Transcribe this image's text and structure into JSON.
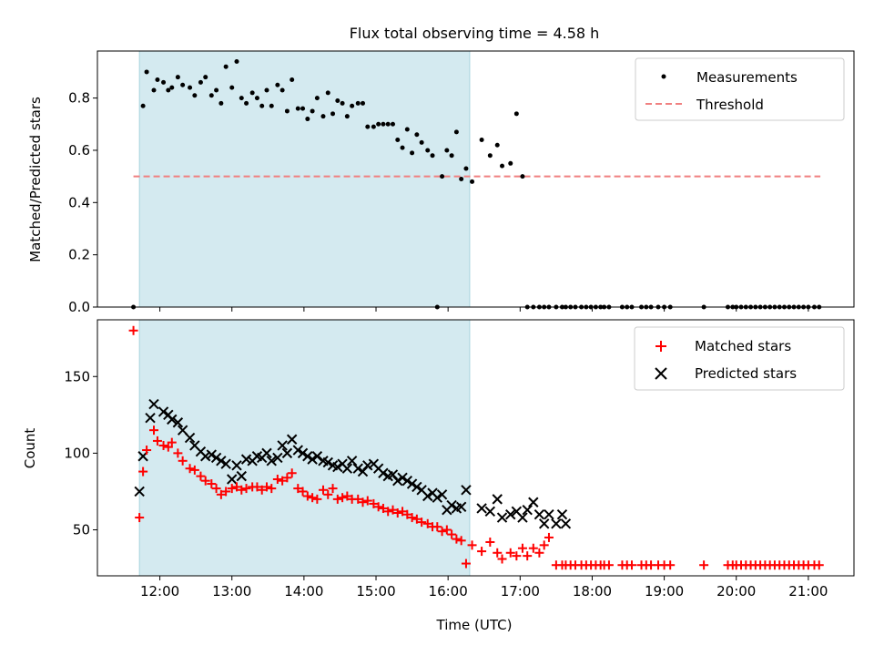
{
  "chart_data": [
    {
      "type": "scatter",
      "title": "Flux total observing time = 4.58 h",
      "xlabel": "",
      "ylabel": "Matched/Predicted stars",
      "xlim": [
        "11:08",
        "21:38"
      ],
      "ylim": [
        0,
        0.98
      ],
      "yticks": [
        0.0,
        0.2,
        0.4,
        0.6,
        0.8
      ],
      "ytick_labels": [
        "0.0",
        "0.2",
        "0.4",
        "0.6",
        "0.8"
      ],
      "xticks": [
        "12:00",
        "13:00",
        "14:00",
        "15:00",
        "16:00",
        "17:00",
        "18:00",
        "19:00",
        "20:00",
        "21:00"
      ],
      "observing_window": {
        "start": "11:43",
        "end": "16:18",
        "color": "#d4eaf0"
      },
      "threshold": {
        "value": 0.5,
        "start": "11:38",
        "end": "21:10",
        "color": "#f08080"
      },
      "legend_position": "top-right",
      "legend": [
        {
          "label": "Measurements",
          "marker": "dot",
          "color": "#000000"
        },
        {
          "label": "Threshold",
          "marker": "dashed-line",
          "color": "#f08080"
        }
      ],
      "series": [
        {
          "name": "Measurements",
          "color": "#000000",
          "x": [
            "11:38",
            "11:46",
            "11:49",
            "11:55",
            "11:58",
            "12:03",
            "12:07",
            "12:10",
            "12:15",
            "12:19",
            "12:25",
            "12:29",
            "12:34",
            "12:38",
            "12:43",
            "12:47",
            "12:51",
            "12:55",
            "13:00",
            "13:04",
            "13:08",
            "13:12",
            "13:17",
            "13:21",
            "13:25",
            "13:29",
            "13:33",
            "13:38",
            "13:42",
            "13:46",
            "13:50",
            "13:55",
            "13:59",
            "14:03",
            "14:07",
            "14:11",
            "14:16",
            "14:20",
            "14:24",
            "14:28",
            "14:32",
            "14:36",
            "14:40",
            "14:45",
            "14:49",
            "14:53",
            "14:58",
            "15:02",
            "15:06",
            "15:10",
            "15:14",
            "15:18",
            "15:22",
            "15:26",
            "15:30",
            "15:34",
            "15:38",
            "15:43",
            "15:47",
            "15:51",
            "15:55",
            "15:59",
            "16:03",
            "16:07",
            "16:11",
            "16:15",
            "16:20",
            "16:28",
            "16:35",
            "16:41",
            "16:45",
            "16:52",
            "16:57",
            "17:02",
            "17:06",
            "17:11",
            "17:16",
            "17:20",
            "17:24",
            "17:30",
            "17:35",
            "17:38",
            "17:42",
            "17:46",
            "17:51",
            "17:55",
            "17:59",
            "18:03",
            "18:07",
            "18:10",
            "18:14",
            "18:25",
            "18:29",
            "18:33",
            "18:41",
            "18:45",
            "18:49",
            "18:55",
            "19:00",
            "19:05",
            "19:33",
            "19:53",
            "19:57",
            "20:00",
            "20:04",
            "20:08",
            "20:12",
            "20:16",
            "20:20",
            "20:24",
            "20:28",
            "20:32",
            "20:36",
            "20:40",
            "20:44",
            "20:48",
            "20:52",
            "20:56",
            "21:00",
            "21:05",
            "21:09"
          ],
          "y": [
            0.0,
            0.77,
            0.9,
            0.83,
            0.87,
            0.86,
            0.83,
            0.84,
            0.88,
            0.85,
            0.84,
            0.81,
            0.86,
            0.88,
            0.81,
            0.83,
            0.78,
            0.92,
            0.84,
            0.94,
            0.8,
            0.78,
            0.82,
            0.8,
            0.77,
            0.83,
            0.77,
            0.85,
            0.83,
            0.75,
            0.87,
            0.76,
            0.76,
            0.72,
            0.75,
            0.8,
            0.73,
            0.82,
            0.74,
            0.79,
            0.78,
            0.73,
            0.77,
            0.78,
            0.78,
            0.69,
            0.69,
            0.7,
            0.7,
            0.7,
            0.7,
            0.64,
            0.61,
            0.68,
            0.59,
            0.66,
            0.63,
            0.6,
            0.58,
            0.0,
            0.5,
            0.6,
            0.58,
            0.67,
            0.49,
            0.53,
            0.48,
            0.64,
            0.58,
            0.62,
            0.54,
            0.55,
            0.74,
            0.5,
            0.0,
            0.0,
            0.0,
            0.0,
            0.0,
            0.0,
            0.0,
            0.0,
            0.0,
            0.0,
            0.0,
            0.0,
            0.0,
            0.0,
            0.0,
            0.0,
            0.0,
            0.0,
            0.0,
            0.0,
            0.0,
            0.0,
            0.0,
            0.0,
            0.0,
            0.0,
            0.0,
            0.0,
            0.0,
            0.0,
            0.0,
            0.0,
            0.0,
            0.0,
            0.0,
            0.0,
            0.0,
            0.0,
            0.0,
            0.0,
            0.0,
            0.0,
            0.0,
            0.0,
            0.0,
            0.0,
            0.0
          ]
        }
      ]
    },
    {
      "type": "scatter",
      "title": "",
      "xlabel": "Time (UTC)",
      "ylabel": "Count",
      "xlim": [
        "11:08",
        "21:38"
      ],
      "ylim": [
        20,
        187
      ],
      "yticks": [
        50,
        100,
        150
      ],
      "ytick_labels": [
        "50",
        "100",
        "150"
      ],
      "xticks": [
        "12:00",
        "13:00",
        "14:00",
        "15:00",
        "16:00",
        "17:00",
        "18:00",
        "19:00",
        "20:00",
        "21:00"
      ],
      "xtick_labels": [
        "12:00",
        "13:00",
        "14:00",
        "15:00",
        "16:00",
        "17:00",
        "18:00",
        "19:00",
        "20:00",
        "21:00"
      ],
      "observing_window": {
        "start": "11:43",
        "end": "16:18",
        "color": "#d4eaf0"
      },
      "legend_position": "top-right",
      "legend": [
        {
          "label": "Matched stars",
          "marker": "plus",
          "color": "#ff0000"
        },
        {
          "label": "Predicted stars",
          "marker": "x",
          "color": "#000000"
        }
      ],
      "series": [
        {
          "name": "Matched stars",
          "color": "#ff0000",
          "x": [
            "11:38",
            "11:43",
            "11:46",
            "11:49",
            "11:55",
            "11:58",
            "12:03",
            "12:07",
            "12:10",
            "12:15",
            "12:19",
            "12:25",
            "12:29",
            "12:34",
            "12:38",
            "12:43",
            "12:47",
            "12:51",
            "12:55",
            "13:00",
            "13:04",
            "13:08",
            "13:12",
            "13:17",
            "13:21",
            "13:25",
            "13:29",
            "13:33",
            "13:38",
            "13:42",
            "13:46",
            "13:50",
            "13:55",
            "13:59",
            "14:03",
            "14:07",
            "14:11",
            "14:16",
            "14:20",
            "14:24",
            "14:28",
            "14:32",
            "14:36",
            "14:40",
            "14:45",
            "14:49",
            "14:53",
            "14:58",
            "15:02",
            "15:06",
            "15:10",
            "15:14",
            "15:18",
            "15:22",
            "15:26",
            "15:30",
            "15:34",
            "15:38",
            "15:43",
            "15:47",
            "15:51",
            "15:55",
            "15:59",
            "16:03",
            "16:07",
            "16:11",
            "16:15",
            "16:20",
            "16:28",
            "16:35",
            "16:41",
            "16:45",
            "16:52",
            "16:57",
            "17:02",
            "17:06",
            "17:11",
            "17:16",
            "17:20",
            "17:24",
            "17:30",
            "17:35",
            "17:38",
            "17:42",
            "17:46",
            "17:51",
            "17:55",
            "17:59",
            "18:03",
            "18:07",
            "18:10",
            "18:14",
            "18:25",
            "18:29",
            "18:33",
            "18:41",
            "18:45",
            "18:49",
            "18:55",
            "19:00",
            "19:05",
            "19:33",
            "19:53",
            "19:57",
            "20:00",
            "20:04",
            "20:08",
            "20:12",
            "20:16",
            "20:20",
            "20:24",
            "20:28",
            "20:32",
            "20:36",
            "20:40",
            "20:44",
            "20:48",
            "20:52",
            "20:56",
            "21:00",
            "21:05",
            "21:09"
          ],
          "y": [
            180,
            58,
            88,
            102,
            115,
            108,
            105,
            104,
            107,
            100,
            95,
            90,
            89,
            85,
            82,
            80,
            77,
            73,
            75,
            77,
            78,
            76,
            77,
            78,
            78,
            76,
            78,
            77,
            83,
            82,
            84,
            87,
            77,
            75,
            72,
            71,
            70,
            76,
            73,
            77,
            70,
            71,
            72,
            70,
            70,
            68,
            69,
            67,
            65,
            64,
            62,
            63,
            61,
            62,
            60,
            58,
            57,
            55,
            54,
            52,
            52,
            49,
            50,
            47,
            44,
            43,
            28,
            40,
            36,
            42,
            35,
            31,
            35,
            33,
            38,
            33,
            38,
            35,
            40,
            45,
            27,
            27,
            27,
            27,
            27,
            27,
            27,
            27,
            27,
            27,
            27,
            27,
            27,
            27,
            27,
            27,
            27,
            27,
            27,
            27,
            27,
            27,
            27,
            27,
            27,
            27,
            27,
            27,
            27,
            27,
            27,
            27,
            27,
            27,
            27,
            27,
            27,
            27,
            27,
            27,
            27,
            27
          ]
        },
        {
          "name": "Predicted stars",
          "color": "#000000",
          "x": [
            "11:43",
            "11:46",
            "11:52",
            "11:55",
            "12:03",
            "12:07",
            "12:10",
            "12:15",
            "12:19",
            "12:25",
            "12:29",
            "12:34",
            "12:38",
            "12:43",
            "12:47",
            "12:51",
            "12:55",
            "13:00",
            "13:04",
            "13:08",
            "13:12",
            "13:17",
            "13:21",
            "13:25",
            "13:29",
            "13:33",
            "13:38",
            "13:42",
            "13:46",
            "13:50",
            "13:55",
            "13:59",
            "14:03",
            "14:07",
            "14:11",
            "14:16",
            "14:20",
            "14:24",
            "14:28",
            "14:32",
            "14:36",
            "14:40",
            "14:45",
            "14:49",
            "14:53",
            "14:58",
            "15:02",
            "15:06",
            "15:10",
            "15:14",
            "15:18",
            "15:22",
            "15:26",
            "15:30",
            "15:34",
            "15:38",
            "15:43",
            "15:47",
            "15:51",
            "15:55",
            "15:59",
            "16:03",
            "16:07",
            "16:11",
            "16:15",
            "16:28",
            "16:35",
            "16:41",
            "16:45",
            "16:52",
            "16:57",
            "17:02",
            "17:06",
            "17:11",
            "17:16",
            "17:20",
            "17:24",
            "17:30",
            "17:35",
            "17:38"
          ],
          "y": [
            75,
            98,
            123,
            132,
            127,
            125,
            122,
            120,
            115,
            110,
            105,
            101,
            98,
            99,
            97,
            95,
            93,
            83,
            92,
            85,
            96,
            95,
            98,
            97,
            100,
            95,
            97,
            105,
            100,
            109,
            102,
            100,
            98,
            96,
            98,
            95,
            94,
            92,
            91,
            93,
            90,
            95,
            90,
            88,
            92,
            93,
            90,
            87,
            85,
            86,
            82,
            84,
            82,
            80,
            78,
            76,
            72,
            74,
            71,
            73,
            63,
            66,
            64,
            65,
            76,
            64,
            62,
            70,
            58,
            60,
            62,
            58,
            63,
            68,
            60,
            54,
            60,
            54,
            60,
            54
          ]
        }
      ]
    }
  ]
}
